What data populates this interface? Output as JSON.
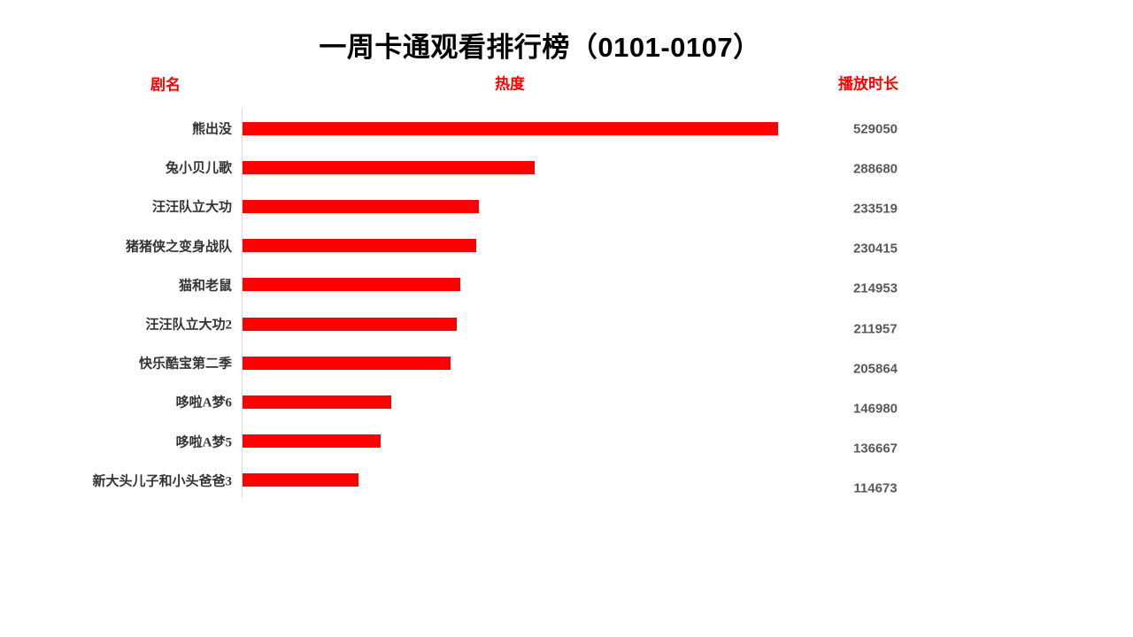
{
  "title": "一周卡通观看排行榜（0101-0107）",
  "columns": {
    "name_header": "剧名",
    "heat_header": "热度",
    "duration_header": "播放时长"
  },
  "colors": {
    "bar": "#ff0000",
    "header_text": "#ff0000",
    "title_text": "#000000",
    "category_text": "#333333",
    "value_text": "#595959",
    "axis_line": "#d9d9d9",
    "background": "#ffffff"
  },
  "chart_data": {
    "type": "bar",
    "orientation": "horizontal",
    "title": "一周卡通观看排行榜（0101-0107）",
    "xlabel": "热度",
    "ylabel": "剧名",
    "value_column_label": "播放时长",
    "categories": [
      "熊出没",
      "兔小贝儿歌",
      "汪汪队立大功",
      "猪猪侠之变身战队",
      "猫和老鼠",
      "汪汪队立大功2",
      "快乐酷宝第二季",
      "哆啦A梦6",
      "哆啦A梦5",
      "新大头儿子和小头爸爸3"
    ],
    "values": [
      529050,
      288680,
      233519,
      230415,
      214953,
      211957,
      205864,
      146980,
      136667,
      114673
    ],
    "xlim": [
      0,
      529050
    ],
    "grid": false,
    "legend": false,
    "data_labels": "right column"
  }
}
